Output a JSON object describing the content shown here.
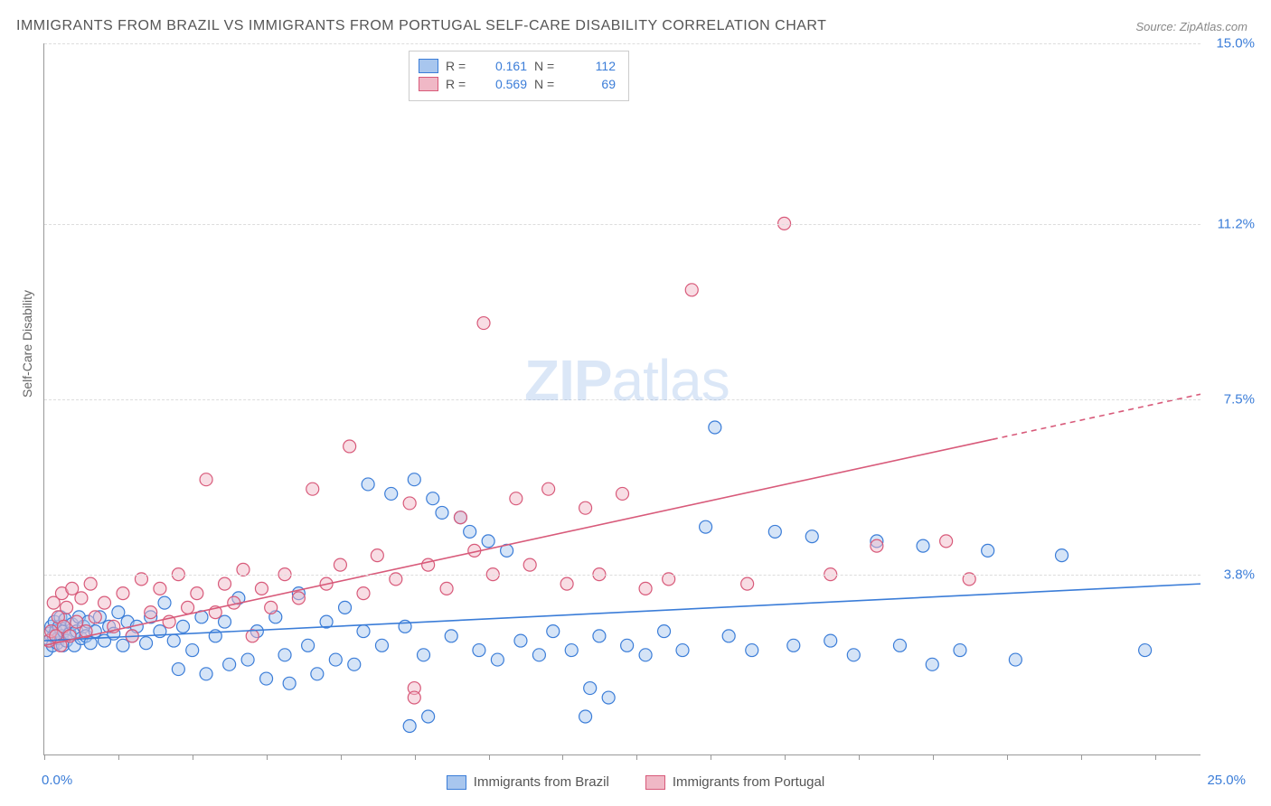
{
  "title": "IMMIGRANTS FROM BRAZIL VS IMMIGRANTS FROM PORTUGAL SELF-CARE DISABILITY CORRELATION CHART",
  "source_label": "Source: ",
  "source_value": "ZipAtlas.com",
  "y_axis_label": "Self-Care Disability",
  "watermark_zip": "ZIP",
  "watermark_atlas": "atlas",
  "chart": {
    "type": "scatter",
    "xlim": [
      0,
      25
    ],
    "ylim": [
      0,
      15
    ],
    "x_tick_positions": [
      0,
      1.6,
      3.2,
      4.8,
      6.4,
      8.0,
      9.6,
      11.2,
      12.8,
      14.4,
      16.0,
      17.6,
      19.2,
      20.8,
      22.4,
      24.0
    ],
    "x_label_min": "0.0%",
    "x_label_max": "25.0%",
    "y_gridlines": [
      {
        "value": 3.8,
        "label": "3.8%"
      },
      {
        "value": 7.5,
        "label": "7.5%"
      },
      {
        "value": 11.2,
        "label": "11.2%"
      },
      {
        "value": 15.0,
        "label": "15.0%"
      }
    ],
    "background_color": "#ffffff",
    "grid_color": "#dddddd",
    "axis_color": "#999999",
    "marker_radius": 7,
    "marker_stroke_width": 1.2,
    "marker_fill_opacity": 0.28,
    "line_width": 1.6,
    "series": [
      {
        "id": "brazil",
        "label": "Immigrants from Brazil",
        "color_stroke": "#3b7dd8",
        "color_fill": "#a8c6ee",
        "R": "0.161",
        "N": "112",
        "trend": {
          "x1": 0,
          "y1": 2.4,
          "x2": 25,
          "y2": 3.6,
          "dash_from_x": null
        },
        "points": [
          [
            0.05,
            2.2
          ],
          [
            0.1,
            2.55
          ],
          [
            0.12,
            2.4
          ],
          [
            0.15,
            2.7
          ],
          [
            0.18,
            2.3
          ],
          [
            0.2,
            2.5
          ],
          [
            0.22,
            2.8
          ],
          [
            0.25,
            2.6
          ],
          [
            0.28,
            2.35
          ],
          [
            0.3,
            2.45
          ],
          [
            0.32,
            2.7
          ],
          [
            0.35,
            2.9
          ],
          [
            0.38,
            2.5
          ],
          [
            0.4,
            2.3
          ],
          [
            0.42,
            2.6
          ],
          [
            0.45,
            2.85
          ],
          [
            0.48,
            2.4
          ],
          [
            0.55,
            2.55
          ],
          [
            0.6,
            2.75
          ],
          [
            0.65,
            2.3
          ],
          [
            0.7,
            2.6
          ],
          [
            0.75,
            2.9
          ],
          [
            0.8,
            2.45
          ],
          [
            0.85,
            2.7
          ],
          [
            0.9,
            2.5
          ],
          [
            0.95,
            2.8
          ],
          [
            1.0,
            2.35
          ],
          [
            1.1,
            2.6
          ],
          [
            1.2,
            2.9
          ],
          [
            1.3,
            2.4
          ],
          [
            1.4,
            2.7
          ],
          [
            1.5,
            2.55
          ],
          [
            1.6,
            3.0
          ],
          [
            1.7,
            2.3
          ],
          [
            1.8,
            2.8
          ],
          [
            1.9,
            2.5
          ],
          [
            2.0,
            2.7
          ],
          [
            2.2,
            2.35
          ],
          [
            2.3,
            2.9
          ],
          [
            2.5,
            2.6
          ],
          [
            2.6,
            3.2
          ],
          [
            2.8,
            2.4
          ],
          [
            2.9,
            1.8
          ],
          [
            3.0,
            2.7
          ],
          [
            3.2,
            2.2
          ],
          [
            3.4,
            2.9
          ],
          [
            3.5,
            1.7
          ],
          [
            3.7,
            2.5
          ],
          [
            3.9,
            2.8
          ],
          [
            4.0,
            1.9
          ],
          [
            4.2,
            3.3
          ],
          [
            4.4,
            2.0
          ],
          [
            4.6,
            2.6
          ],
          [
            4.8,
            1.6
          ],
          [
            5.0,
            2.9
          ],
          [
            5.2,
            2.1
          ],
          [
            5.3,
            1.5
          ],
          [
            5.5,
            3.4
          ],
          [
            5.7,
            2.3
          ],
          [
            5.9,
            1.7
          ],
          [
            6.1,
            2.8
          ],
          [
            6.3,
            2.0
          ],
          [
            6.5,
            3.1
          ],
          [
            6.7,
            1.9
          ],
          [
            6.9,
            2.6
          ],
          [
            7.0,
            5.7
          ],
          [
            7.3,
            2.3
          ],
          [
            7.5,
            5.5
          ],
          [
            7.8,
            2.7
          ],
          [
            8.0,
            5.8
          ],
          [
            8.2,
            2.1
          ],
          [
            8.4,
            5.4
          ],
          [
            8.6,
            5.1
          ],
          [
            8.8,
            2.5
          ],
          [
            9.0,
            5.0
          ],
          [
            9.2,
            4.7
          ],
          [
            9.4,
            2.2
          ],
          [
            9.6,
            4.5
          ],
          [
            9.8,
            2.0
          ],
          [
            10.0,
            4.3
          ],
          [
            10.3,
            2.4
          ],
          [
            10.7,
            2.1
          ],
          [
            11.0,
            2.6
          ],
          [
            11.4,
            2.2
          ],
          [
            11.8,
            1.4
          ],
          [
            12.0,
            2.5
          ],
          [
            12.2,
            1.2
          ],
          [
            12.6,
            2.3
          ],
          [
            13.0,
            2.1
          ],
          [
            13.4,
            2.6
          ],
          [
            13.8,
            2.2
          ],
          [
            14.3,
            4.8
          ],
          [
            14.5,
            6.9
          ],
          [
            14.8,
            2.5
          ],
          [
            15.3,
            2.2
          ],
          [
            15.8,
            4.7
          ],
          [
            16.2,
            2.3
          ],
          [
            16.6,
            4.6
          ],
          [
            17.0,
            2.4
          ],
          [
            17.5,
            2.1
          ],
          [
            18.0,
            4.5
          ],
          [
            18.5,
            2.3
          ],
          [
            19.0,
            4.4
          ],
          [
            19.2,
            1.9
          ],
          [
            19.8,
            2.2
          ],
          [
            20.4,
            4.3
          ],
          [
            21.0,
            2.0
          ],
          [
            22.0,
            4.2
          ],
          [
            23.8,
            2.2
          ],
          [
            7.9,
            0.6
          ],
          [
            8.3,
            0.8
          ],
          [
            11.7,
            0.8
          ]
        ]
      },
      {
        "id": "portugal",
        "label": "Immigrants from Portugal",
        "color_stroke": "#d85a7a",
        "color_fill": "#f0b8c6",
        "R": "0.569",
        "N": "69",
        "trend": {
          "x1": 0,
          "y1": 2.3,
          "x2": 25,
          "y2": 7.6,
          "dash_from_x": 20.5
        },
        "points": [
          [
            0.1,
            2.4
          ],
          [
            0.15,
            2.6
          ],
          [
            0.2,
            3.2
          ],
          [
            0.25,
            2.5
          ],
          [
            0.3,
            2.9
          ],
          [
            0.35,
            2.3
          ],
          [
            0.38,
            3.4
          ],
          [
            0.42,
            2.7
          ],
          [
            0.48,
            3.1
          ],
          [
            0.55,
            2.5
          ],
          [
            0.6,
            3.5
          ],
          [
            0.7,
            2.8
          ],
          [
            0.8,
            3.3
          ],
          [
            0.9,
            2.6
          ],
          [
            1.0,
            3.6
          ],
          [
            1.1,
            2.9
          ],
          [
            1.3,
            3.2
          ],
          [
            1.5,
            2.7
          ],
          [
            1.7,
            3.4
          ],
          [
            1.9,
            2.5
          ],
          [
            2.1,
            3.7
          ],
          [
            2.3,
            3.0
          ],
          [
            2.5,
            3.5
          ],
          [
            2.7,
            2.8
          ],
          [
            2.9,
            3.8
          ],
          [
            3.1,
            3.1
          ],
          [
            3.3,
            3.4
          ],
          [
            3.5,
            5.8
          ],
          [
            3.7,
            3.0
          ],
          [
            3.9,
            3.6
          ],
          [
            4.1,
            3.2
          ],
          [
            4.3,
            3.9
          ],
          [
            4.5,
            2.5
          ],
          [
            4.7,
            3.5
          ],
          [
            4.9,
            3.1
          ],
          [
            5.2,
            3.8
          ],
          [
            5.5,
            3.3
          ],
          [
            5.8,
            5.6
          ],
          [
            6.1,
            3.6
          ],
          [
            6.4,
            4.0
          ],
          [
            6.6,
            6.5
          ],
          [
            6.9,
            3.4
          ],
          [
            7.2,
            4.2
          ],
          [
            7.6,
            3.7
          ],
          [
            7.9,
            5.3
          ],
          [
            8.0,
            1.4
          ],
          [
            8.0,
            1.2
          ],
          [
            8.3,
            4.0
          ],
          [
            8.7,
            3.5
          ],
          [
            9.0,
            5.0
          ],
          [
            9.3,
            4.3
          ],
          [
            9.5,
            9.1
          ],
          [
            9.7,
            3.8
          ],
          [
            10.2,
            5.4
          ],
          [
            10.5,
            4.0
          ],
          [
            10.9,
            5.6
          ],
          [
            11.3,
            3.6
          ],
          [
            11.7,
            5.2
          ],
          [
            12.0,
            3.8
          ],
          [
            12.5,
            5.5
          ],
          [
            13.0,
            3.5
          ],
          [
            13.5,
            3.7
          ],
          [
            14.0,
            9.8
          ],
          [
            15.2,
            3.6
          ],
          [
            16.0,
            11.2
          ],
          [
            17.0,
            3.8
          ],
          [
            18.0,
            4.4
          ],
          [
            19.5,
            4.5
          ],
          [
            20.0,
            3.7
          ]
        ]
      }
    ]
  },
  "stats_labels": {
    "R": "R  =",
    "N": "N  ="
  }
}
